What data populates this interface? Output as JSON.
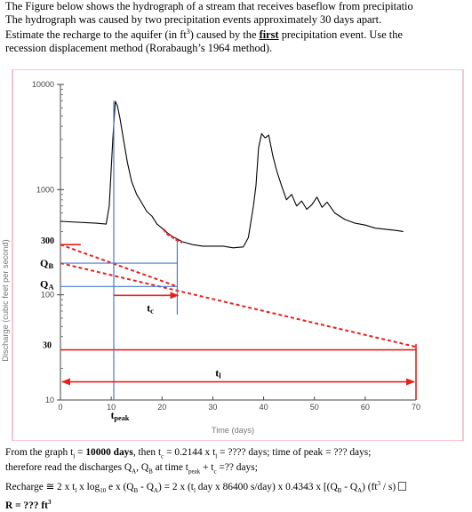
{
  "problem": {
    "line1": "The Figure below shows the hydrograph of a stream that receives baseflow from precipitatio",
    "line2": "The hydrograph was caused by two precipitation events approximately 30 days apart.",
    "line3a": "Estimate the recharge to the aquifer (in ft",
    "line3sup": "3",
    "line3b": ") caused by the ",
    "line3bold": "first",
    "line3c": " precipitation event. Use the",
    "line4": "recession displacement method (Rorabaugh’s 1964 method)."
  },
  "chart_data": {
    "type": "line",
    "title": "",
    "xlabel": "Time (days)",
    "ylabel": "Discharge (cubic feet per second)",
    "xlim": [
      0,
      70
    ],
    "ylim": [
      10,
      10000
    ],
    "yscale": "log",
    "x_ticks": [
      0,
      10,
      20,
      30,
      40,
      50,
      60,
      70
    ],
    "y_ticks": [
      10,
      100,
      1000,
      10000
    ],
    "y_tick_labels": [
      "10",
      "100",
      "1000",
      "10000"
    ],
    "grid": false,
    "series": [
      {
        "color": "#000000",
        "x": [
          0,
          7,
          9,
          9.6,
          10.3,
          10.8,
          11.2,
          11.7,
          12.4,
          13.2,
          14,
          15,
          16,
          17,
          18,
          19,
          20,
          21,
          22,
          24,
          26,
          28,
          30,
          32,
          34,
          36,
          37,
          38,
          38.5,
          39,
          39.6,
          40.3,
          41,
          41.8,
          42.6,
          43.5,
          44.5,
          45.5,
          46.5,
          47.5,
          48.5,
          49.5,
          50.5,
          51.5,
          52.5,
          54,
          56,
          58,
          60,
          62,
          64,
          66,
          67.5
        ],
        "y": [
          500,
          480,
          470,
          700,
          3000,
          6900,
          6300,
          4800,
          3000,
          1800,
          1200,
          900,
          750,
          620,
          560,
          470,
          430,
          390,
          360,
          320,
          300,
          290,
          290,
          290,
          280,
          285,
          350,
          700,
          1100,
          2500,
          3400,
          3100,
          3300,
          2100,
          1500,
          1100,
          800,
          900,
          700,
          780,
          650,
          720,
          850,
          680,
          760,
          600,
          520,
          480,
          460,
          430,
          420,
          410,
          400
        ]
      },
      {
        "color": "#e8201c",
        "style": "dashed",
        "x": [
          20.3,
          21,
          22,
          23,
          24
        ],
        "y": [
          420,
          380,
          355,
          330,
          315
        ]
      }
    ],
    "annotations": {
      "q_b_label": "Q",
      "q_b_sub": "B",
      "q_a_label": "Q",
      "q_a_sub": "A",
      "tc_label": "t",
      "tc_sub": "c",
      "tl_label": "t",
      "tl_sub": "l",
      "tpeak_label": "t",
      "tpeak_sub": "peak",
      "q300_label": "300",
      "q30_label": "30",
      "q300": 300,
      "q30": 30,
      "q_b": 200,
      "q_a": 120,
      "t_peak": 10.5,
      "t_c": 23,
      "t_l": 70,
      "recession_1": {
        "x": [
          0,
          23
        ],
        "y": [
          300,
          120
        ]
      },
      "recession_2": {
        "x": [
          0,
          70
        ],
        "y": [
          200,
          32
        ]
      }
    }
  },
  "bottom": {
    "l1a": "From the graph t",
    "l1sub": "l",
    "l1b": " = ",
    "l1bold": "10000 days",
    "l1c": ", then t",
    "l1sub2": "c",
    "l1d": " = 0.2144 x t",
    "l1sub3": "l",
    "l1e": " = ???? days;  time of peak = ??? days;",
    "l2a": "therefore read the discharges Q",
    "l2sub1": "A",
    "l2b": ", Q",
    "l2sub2": "B",
    "l2c": " at time  t",
    "l2sub3": "peak",
    "l2d": " + t",
    "l2sub4": "c",
    "l2e": " =?? days;",
    "l3a": "Recharge ≅ 2 x t",
    "l3sub1": "l",
    "l3b": " x log",
    "l3sub2": "10",
    "l3c": " e x (Q",
    "l3sub3": "B",
    "l3d": " - Q",
    "l3sub4": "A",
    "l3e": ") = 2 x (t",
    "l3sub5": "l",
    "l3f": " day x 86400 s/day) x 0.4343 x [(Q",
    "l3sub6": "B",
    "l3g": " - Q",
    "l3sub7": "A",
    "l3h": ") (ft",
    "l3sup": "3",
    "l3i": " / s)  ",
    "l4a": "R  = ??? ft",
    "l4sup": "3"
  }
}
